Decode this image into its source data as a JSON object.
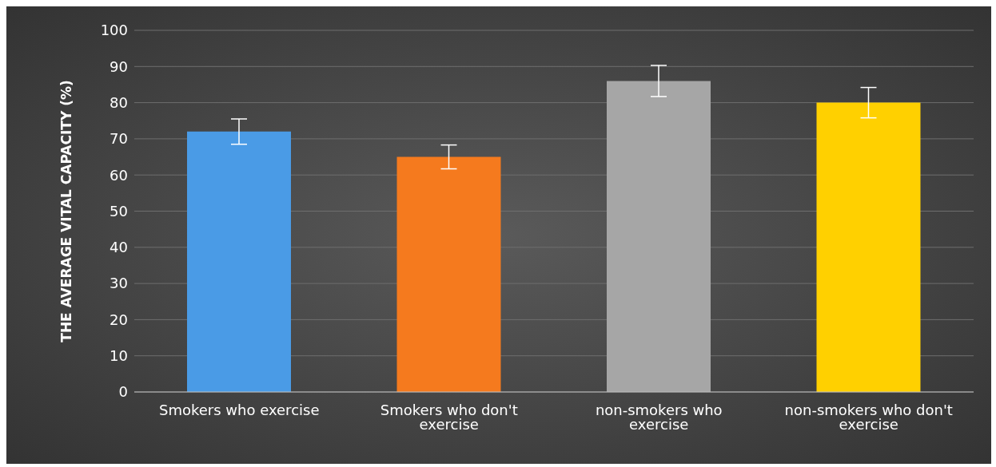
{
  "chart_data": {
    "type": "bar",
    "ylabel": "THE AVERAGE VITAL CAPACITY (%)",
    "categories": [
      "Smokers who exercise",
      "Smokers who don't exercise",
      "non-smokers who exercise",
      "non-smokers who don't exercise"
    ],
    "values": [
      72,
      65,
      86,
      80
    ],
    "colors": [
      "#4a9be6",
      "#f57a1e",
      "#a6a6a6",
      "#ffd000"
    ],
    "errors": [
      3.5,
      3.3,
      4.3,
      4.2
    ],
    "ylim": [
      0,
      100
    ],
    "yticks": [
      0,
      10,
      20,
      30,
      40,
      50,
      60,
      70,
      80,
      90,
      100
    ],
    "grid": "y",
    "legend": false
  }
}
